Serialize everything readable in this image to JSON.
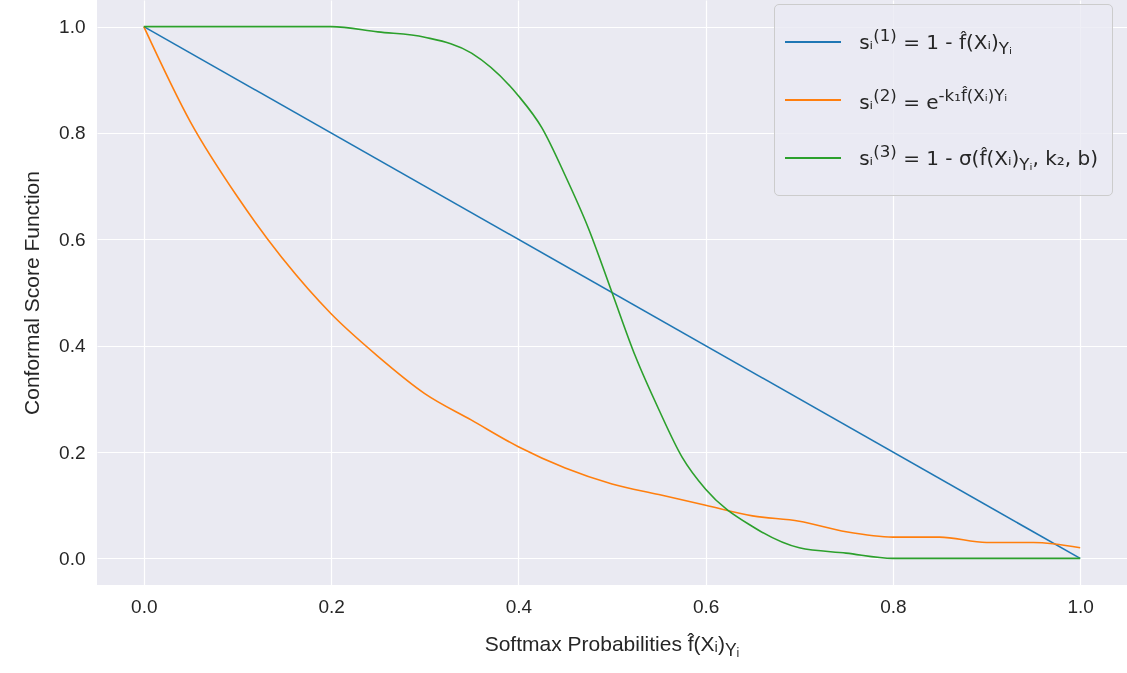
{
  "chart_data": {
    "type": "line",
    "xlabel": "Softmax Probabilities f̂(Xᵢ)$_{Yᵢ}$",
    "ylabel": "Conformal Score Function",
    "xlim": [
      -0.05,
      1.05
    ],
    "ylim": [
      -0.05,
      1.05
    ],
    "xticks": [
      {
        "value": 0,
        "label": "0.0"
      },
      {
        "value": 0.2,
        "label": "0.2"
      },
      {
        "value": 0.4,
        "label": "0.4"
      },
      {
        "value": 0.6,
        "label": "0.6"
      },
      {
        "value": 0.8,
        "label": "0.8"
      },
      {
        "value": 1,
        "label": "1.0"
      }
    ],
    "yticks": [
      {
        "value": 0,
        "label": "0.0"
      },
      {
        "value": 0.2,
        "label": "0.2"
      },
      {
        "value": 0.4,
        "label": "0.4"
      },
      {
        "value": 0.6,
        "label": "0.6"
      },
      {
        "value": 0.8,
        "label": "0.8"
      },
      {
        "value": 1,
        "label": "1.0"
      }
    ],
    "grid": true,
    "legend": "top right",
    "marker": "none",
    "line_style": "solid",
    "series": [
      {
        "name": "sᵢ$^{(1)}$ = 1 - f̂(Xᵢ)$_{Yᵢ}$",
        "color": "#1f77b4",
        "x": [
          0,
          1
        ],
        "values": [
          1,
          0
        ]
      },
      {
        "name": "sᵢ$^{(2)}$ = e$^{-k₁f̂(Xᵢ)Yᵢ}$",
        "color": "#ff7f0e",
        "x": [
          0,
          0.05,
          0.1,
          0.15,
          0.2,
          0.25,
          0.3,
          0.35,
          0.4,
          0.45,
          0.5,
          0.55,
          0.6,
          0.65,
          0.7,
          0.75,
          0.8,
          0.85,
          0.9,
          0.95,
          1.0
        ],
        "values": [
          1.0,
          0.82,
          0.68,
          0.56,
          0.46,
          0.38,
          0.31,
          0.26,
          0.21,
          0.17,
          0.14,
          0.12,
          0.1,
          0.08,
          0.07,
          0.05,
          0.04,
          0.04,
          0.03,
          0.03,
          0.02
        ]
      },
      {
        "name": "sᵢ$^{(3)}$ = 1 - σ(f̂(Xᵢ)$_{Yᵢ}$, k₂, b)",
        "color": "#2ca02c",
        "x": [
          0,
          0.05,
          0.1,
          0.15,
          0.2,
          0.25,
          0.3,
          0.35,
          0.4,
          0.425,
          0.45,
          0.475,
          0.5,
          0.525,
          0.55,
          0.575,
          0.6,
          0.65,
          0.7,
          0.75,
          0.8,
          0.85,
          0.9,
          0.95,
          1.0
        ],
        "values": [
          1.0,
          1.0,
          1.0,
          1.0,
          1.0,
          0.99,
          0.98,
          0.95,
          0.87,
          0.81,
          0.72,
          0.62,
          0.5,
          0.38,
          0.28,
          0.19,
          0.13,
          0.06,
          0.02,
          0.01,
          0.0,
          0.0,
          0.0,
          0.0,
          0.0
        ]
      }
    ]
  }
}
